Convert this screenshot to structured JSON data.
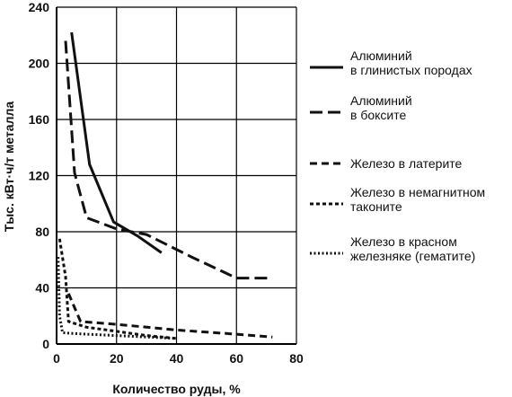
{
  "chart_data": {
    "type": "line",
    "title": "",
    "xlabel": "Количество руды, %",
    "ylabel": "Тыс. кВт·ч/т металла",
    "xlim": [
      0,
      80
    ],
    "ylim": [
      0,
      240
    ],
    "x_ticks": [
      "0",
      "20",
      "40",
      "60",
      "80"
    ],
    "y_ticks": [
      "0",
      "40",
      "80",
      "120",
      "160",
      "200",
      "240"
    ],
    "grid": "horizontal-and-vertical",
    "legend_position": "right",
    "series": [
      {
        "name_lines": [
          "Алюминий",
          "в глинистых породах"
        ],
        "dash": "solid",
        "points": [
          [
            5,
            222
          ],
          [
            11,
            128
          ],
          [
            19,
            87
          ],
          [
            27,
            77
          ],
          [
            35,
            65
          ]
        ]
      },
      {
        "name_lines": [
          "Алюминий",
          "в боксите"
        ],
        "dash": "long-dash",
        "points": [
          [
            3,
            216
          ],
          [
            6,
            122
          ],
          [
            10,
            90
          ],
          [
            20,
            82
          ],
          [
            30,
            78
          ],
          [
            45,
            62
          ],
          [
            60,
            47
          ],
          [
            72,
            47
          ]
        ]
      },
      {
        "name_lines": [
          "Железо в латерите"
        ],
        "dash": "dash",
        "points": [
          [
            4,
            36
          ],
          [
            8,
            16
          ],
          [
            20,
            14
          ],
          [
            40,
            10
          ],
          [
            60,
            7
          ],
          [
            72,
            5
          ]
        ]
      },
      {
        "name_lines": [
          "Железо в немагнитном",
          "таконите"
        ],
        "dash": "short-dash",
        "points": [
          [
            1,
            75
          ],
          [
            3,
            48
          ],
          [
            4,
            16
          ],
          [
            10,
            12
          ],
          [
            20,
            9
          ],
          [
            30,
            6
          ],
          [
            40,
            4
          ]
        ]
      },
      {
        "name_lines": [
          "Железо в красном",
          "железняке (гематите)"
        ],
        "dash": "dotted",
        "points": [
          [
            0.5,
            62
          ],
          [
            1,
            20
          ],
          [
            2,
            8
          ],
          [
            10,
            7
          ],
          [
            20,
            6
          ],
          [
            30,
            5
          ],
          [
            40,
            4
          ]
        ]
      }
    ]
  }
}
